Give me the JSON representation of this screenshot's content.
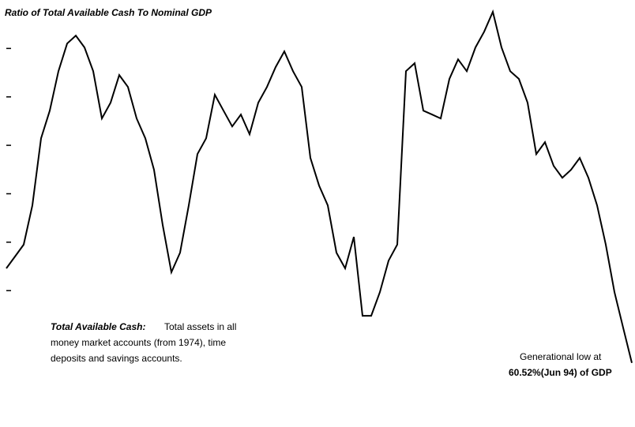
{
  "chart_data": {
    "type": "line",
    "title": "Ratio of Total Available Cash To Nominal GDP",
    "series": [
      {
        "name": "Total Available Cash / Nominal GDP",
        "color": "#000000",
        "values": [
          64.42,
          64.91,
          65.4,
          67.02,
          69.79,
          70.93,
          72.56,
          73.7,
          74.03,
          73.54,
          72.56,
          70.61,
          71.26,
          72.4,
          71.91,
          70.61,
          69.79,
          68.49,
          66.21,
          64.26,
          65.07,
          67.02,
          69.14,
          69.79,
          71.59,
          70.93,
          70.28,
          70.77,
          69.96,
          71.26,
          71.91,
          72.73,
          73.38,
          72.56,
          71.91,
          68.98,
          67.84,
          67.02,
          65.07,
          64.42,
          65.72,
          62.46,
          62.46,
          63.44,
          64.74,
          65.4,
          72.56,
          72.89,
          70.93,
          70.77,
          70.61,
          72.24,
          73.05,
          72.56,
          73.54,
          74.19,
          75.01,
          73.54,
          72.56,
          72.24,
          71.26,
          69.14,
          69.63,
          68.65,
          68.16,
          68.49,
          68.98,
          68.16,
          67.02,
          65.4,
          63.44,
          61.97,
          60.52
        ]
      }
    ],
    "ylim": [
      58,
      75.5
    ],
    "yticks": [
      63.5,
      65.5,
      67.5,
      69.5,
      71.5,
      73.5
    ],
    "note_heading": "Total Available Cash:",
    "note_lines": [
      "Total assets in all",
      "money market accounts (from 1974), time",
      "deposits and savings accounts."
    ],
    "low_lines": [
      "Generational low at",
      "60.52%(Jun 94) of GDP"
    ]
  }
}
